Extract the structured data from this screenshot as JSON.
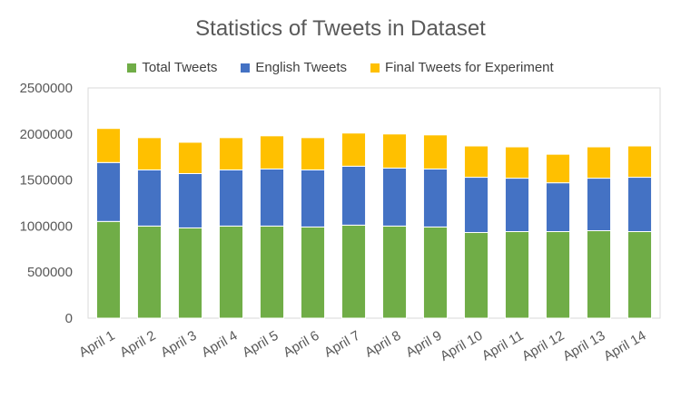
{
  "chart_data": {
    "type": "bar",
    "stacked": true,
    "title": "Statistics of Tweets in Dataset",
    "xlabel": "",
    "ylabel": "",
    "ylim": [
      0,
      2500000
    ],
    "yticks": [
      "0",
      "500000",
      "1000000",
      "1500000",
      "2000000",
      "2500000"
    ],
    "grid": false,
    "legend_position": "top",
    "categories": [
      "April 1",
      "April 2",
      "April 3",
      "April 4",
      "April 5",
      "April 6",
      "April 7",
      "April 8",
      "April 9",
      "April 10",
      "April 11",
      "April 12",
      "April 13",
      "April 14"
    ],
    "series": [
      {
        "name": "Total Tweets",
        "color": "#70AD47",
        "values": [
          1050000,
          1000000,
          980000,
          1000000,
          1000000,
          990000,
          1010000,
          1000000,
          990000,
          930000,
          940000,
          940000,
          950000,
          940000
        ]
      },
      {
        "name": "English Tweets",
        "color": "#4472C4",
        "values": [
          640000,
          610000,
          590000,
          610000,
          620000,
          620000,
          640000,
          630000,
          630000,
          600000,
          580000,
          530000,
          570000,
          590000
        ]
      },
      {
        "name": "Final Tweets for Experiment",
        "color": "#FFC000",
        "values": [
          370000,
          350000,
          340000,
          350000,
          360000,
          350000,
          360000,
          370000,
          370000,
          340000,
          340000,
          310000,
          340000,
          340000
        ]
      }
    ]
  }
}
